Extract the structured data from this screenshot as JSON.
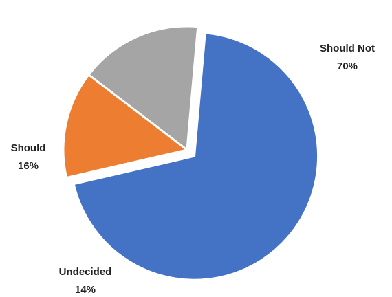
{
  "chart_data": {
    "type": "pie",
    "title": "",
    "slices": [
      {
        "name": "Should Not",
        "value": 70,
        "value_label": "70%",
        "color": "#4472C4"
      },
      {
        "name": "Undecided",
        "value": 14,
        "value_label": "14%",
        "color": "#ED7D31"
      },
      {
        "name": "Should",
        "value": 16,
        "value_label": "16%",
        "color": "#A5A5A5"
      }
    ],
    "exploded_slice": "Should Not",
    "legend": "none",
    "data_labels": "outside"
  }
}
